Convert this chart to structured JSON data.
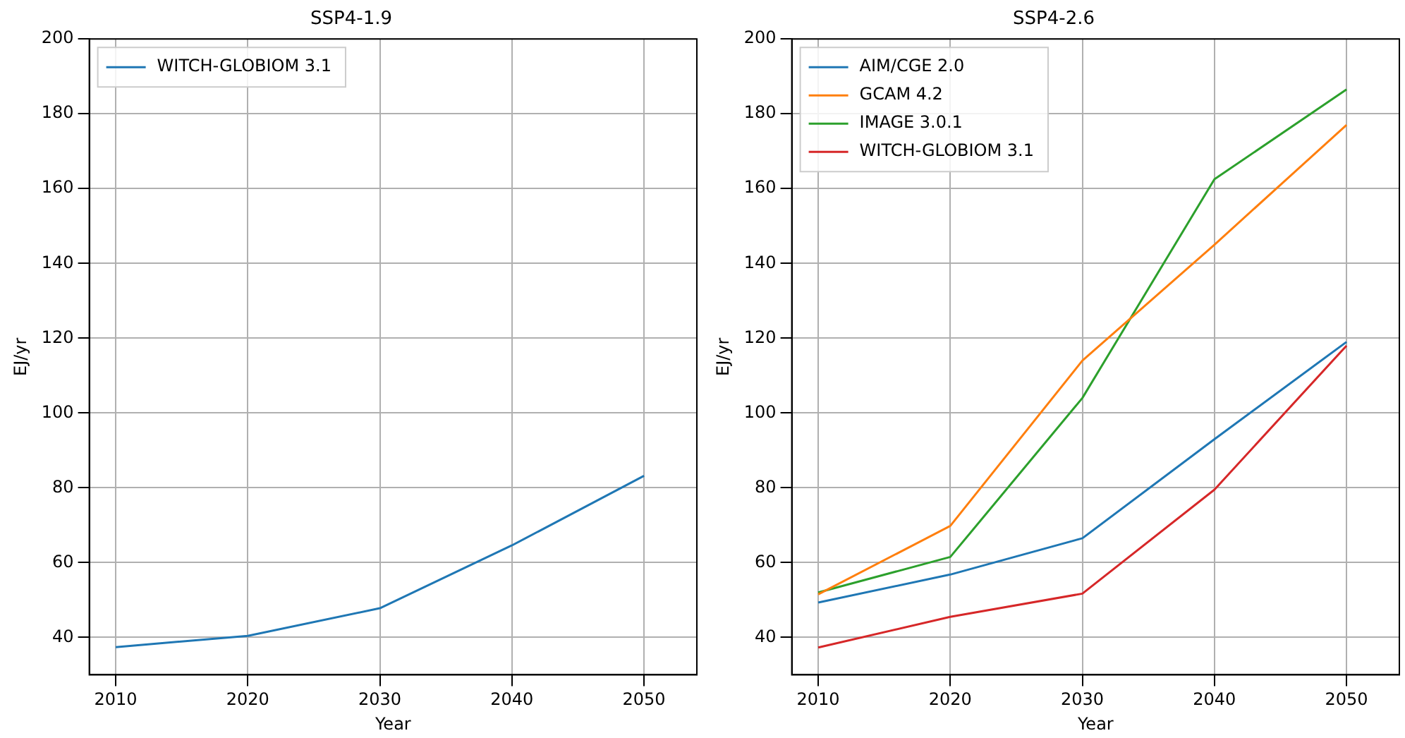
{
  "chart_data": [
    {
      "type": "line",
      "title": "SSP4-1.9",
      "xlabel": "Year",
      "ylabel": "EJ/yr",
      "x": [
        2010,
        2020,
        2030,
        2040,
        2050
      ],
      "xlim": [
        2008,
        2054
      ],
      "xticks": [
        2010,
        2020,
        2030,
        2040,
        2050
      ],
      "ylim": [
        30,
        200
      ],
      "yticks": [
        40,
        60,
        80,
        100,
        120,
        140,
        160,
        180,
        200
      ],
      "grid": true,
      "legend": "top left",
      "series": [
        {
          "name": "WITCH-GLOBIOM 3.1",
          "color": "#1f77b4",
          "values": [
            37.4,
            40.4,
            47.8,
            64.6,
            83.2
          ]
        }
      ]
    },
    {
      "type": "line",
      "title": "SSP4-2.6",
      "xlabel": "Year",
      "ylabel": "EJ/yr",
      "x": [
        2010,
        2020,
        2030,
        2040,
        2050
      ],
      "xlim": [
        2008,
        2054
      ],
      "xticks": [
        2010,
        2020,
        2030,
        2040,
        2050
      ],
      "ylim": [
        30,
        200
      ],
      "yticks": [
        40,
        60,
        80,
        100,
        120,
        140,
        160,
        180,
        200
      ],
      "grid": true,
      "legend": "top left",
      "series": [
        {
          "name": "AIM/CGE 2.0",
          "color": "#1f77b4",
          "values": [
            49.3,
            56.8,
            66.5,
            93,
            119
          ]
        },
        {
          "name": "GCAM 4.2",
          "color": "#ff7f0e",
          "values": [
            51.5,
            69.8,
            114,
            145,
            177
          ]
        },
        {
          "name": "IMAGE 3.0.1",
          "color": "#2ca02c",
          "values": [
            52,
            61.5,
            104,
            162.5,
            186.5
          ]
        },
        {
          "name": "WITCH-GLOBIOM 3.1",
          "color": "#d62728",
          "values": [
            37.3,
            45.5,
            51.7,
            79.5,
            118
          ]
        }
      ]
    }
  ]
}
